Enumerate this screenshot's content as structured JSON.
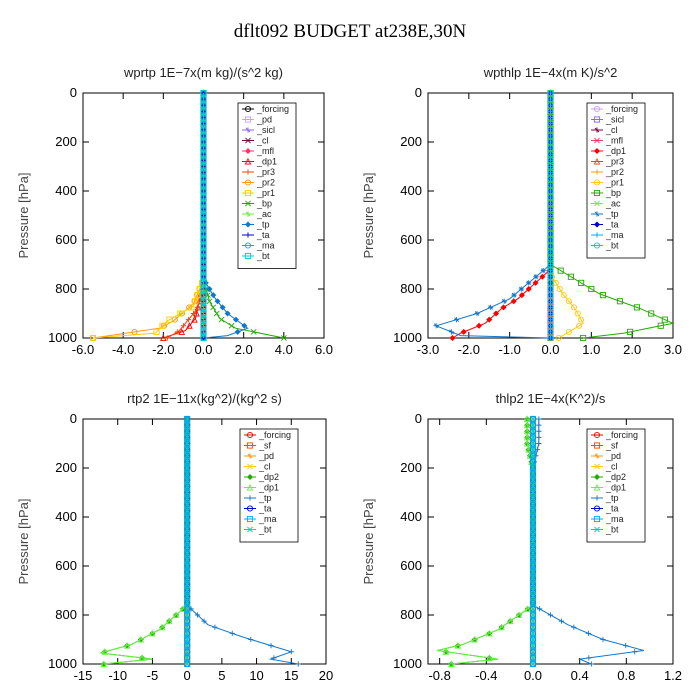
{
  "title": "dflt092  BUDGET at238E,30N",
  "chart_data": [
    {
      "type": "line",
      "title": "wprtp   1E−7x(m kg)/(s^2 kg)",
      "ylabel": "Pressure  [hPa]",
      "xlim": [
        -6,
        6
      ],
      "ylim": [
        1000,
        0
      ],
      "xticks": [
        "-6.0",
        "-4.0",
        "-2.0",
        "0.0",
        "2.0",
        "4.0",
        "6.0"
      ],
      "xtick_values": [
        -6,
        -4,
        -2,
        0,
        2,
        4,
        6
      ],
      "yticks": [
        "0",
        "200",
        "400",
        "600",
        "800",
        "1000"
      ],
      "ytick_values": [
        0,
        200,
        400,
        600,
        800,
        1000
      ],
      "legend_position": "top-right",
      "series": [
        {
          "name": "_forcing",
          "color": "#000000",
          "points": [
            [
              0,
              0
            ],
            [
              0,
              750
            ],
            [
              0,
              1000
            ]
          ]
        },
        {
          "name": "_pd",
          "color": "#c8a0ff",
          "points": [
            [
              0,
              0
            ],
            [
              0,
              1000
            ]
          ]
        },
        {
          "name": "_sicl",
          "color": "#8866ff",
          "points": [
            [
              0,
              0
            ],
            [
              0,
              1000
            ]
          ]
        },
        {
          "name": "_cl",
          "color": "#800040",
          "points": [
            [
              0,
              0
            ],
            [
              0,
              1000
            ]
          ]
        },
        {
          "name": "_mfl",
          "color": "#ff3366",
          "points": [
            [
              0,
              0
            ],
            [
              0,
              1000
            ]
          ]
        },
        {
          "name": "_dp1",
          "color": "#ff0000",
          "points": [
            [
              0,
              0
            ],
            [
              0,
              760
            ],
            [
              -0.2,
              850
            ],
            [
              -0.4,
              920
            ],
            [
              -0.9,
              970
            ],
            [
              -2,
              1000
            ]
          ]
        },
        {
          "name": "_pr3",
          "color": "#ff4400",
          "points": [
            [
              0,
              0
            ],
            [
              0,
              760
            ],
            [
              -0.3,
              880
            ],
            [
              -1.2,
              970
            ],
            [
              -1.8,
              1000
            ]
          ]
        },
        {
          "name": "_pr2",
          "color": "#ff9900",
          "points": [
            [
              0,
              0
            ],
            [
              0,
              760
            ],
            [
              -0.5,
              860
            ],
            [
              -1.5,
              930
            ],
            [
              -2.2,
              960
            ],
            [
              -5.5,
              1000
            ]
          ]
        },
        {
          "name": "_pr1",
          "color": "#ffcc00",
          "points": [
            [
              0,
              0
            ],
            [
              0,
              760
            ],
            [
              -0.5,
              870
            ],
            [
              -1.8,
              930
            ],
            [
              -2.4,
              980
            ],
            [
              -5.5,
              1000
            ]
          ]
        },
        {
          "name": "_bp",
          "color": "#22aa00",
          "points": [
            [
              0,
              0
            ],
            [
              0,
              760
            ],
            [
              0.3,
              850
            ],
            [
              0.8,
              920
            ],
            [
              1.6,
              960
            ],
            [
              4,
              1000
            ]
          ]
        },
        {
          "name": "_ac",
          "color": "#66ee44",
          "points": [
            [
              0,
              0
            ],
            [
              0,
              1000
            ]
          ]
        },
        {
          "name": "_tp",
          "color": "#1177cc",
          "points": [
            [
              0,
              0
            ],
            [
              0,
              760
            ],
            [
              0.6,
              840
            ],
            [
              1.2,
              900
            ],
            [
              2.2,
              960
            ],
            [
              1.2,
              990
            ],
            [
              0,
              1000
            ]
          ]
        },
        {
          "name": "_ta",
          "color": "#0000cc",
          "points": [
            [
              0,
              0
            ],
            [
              0,
              1000
            ]
          ]
        },
        {
          "name": "_ma",
          "color": "#00aaff",
          "points": [
            [
              0,
              0
            ],
            [
              0,
              1000
            ]
          ]
        },
        {
          "name": "_bt",
          "color": "#00cccc",
          "points": [
            [
              0,
              0
            ],
            [
              0,
              1000
            ]
          ]
        }
      ]
    },
    {
      "type": "line",
      "title": "wpthlp   1E−4x(m K)/s^2",
      "ylabel": "Pressure  [hPa]",
      "xlim": [
        -3,
        3
      ],
      "ylim": [
        1000,
        0
      ],
      "xticks": [
        "-3.0",
        "-2.0",
        "-1.0",
        "0.0",
        "1.0",
        "2.0",
        "3.0"
      ],
      "xtick_values": [
        -3,
        -2,
        -1,
        0,
        1,
        2,
        3
      ],
      "yticks": [
        "0",
        "200",
        "400",
        "600",
        "800",
        "1000"
      ],
      "ytick_values": [
        0,
        200,
        400,
        600,
        800,
        1000
      ],
      "legend_position": "top-right",
      "series": [
        {
          "name": "_forcing",
          "color": "#c8a0ff",
          "points": [
            [
              0,
              0
            ],
            [
              0,
              1000
            ]
          ]
        },
        {
          "name": "_sicl",
          "color": "#8866ff",
          "points": [
            [
              0,
              0
            ],
            [
              0,
              1000
            ]
          ]
        },
        {
          "name": "_cl",
          "color": "#800040",
          "points": [
            [
              0,
              0
            ],
            [
              0,
              1000
            ]
          ]
        },
        {
          "name": "_mfl",
          "color": "#ff3366",
          "points": [
            [
              0,
              0
            ],
            [
              0,
              1000
            ]
          ]
        },
        {
          "name": "_dp1",
          "color": "#ff0000",
          "points": [
            [
              0,
              0
            ],
            [
              0,
              720
            ],
            [
              -0.8,
              840
            ],
            [
              -1.2,
              880
            ],
            [
              -1.6,
              940
            ],
            [
              -2.2,
              980
            ],
            [
              -2.4,
              1000
            ]
          ]
        },
        {
          "name": "_pr3",
          "color": "#ff4400",
          "points": [
            [
              0,
              0
            ],
            [
              0,
              1000
            ]
          ]
        },
        {
          "name": "_pr2",
          "color": "#ff9900",
          "points": [
            [
              0,
              0
            ],
            [
              0,
              1000
            ]
          ]
        },
        {
          "name": "_pr1",
          "color": "#ffcc00",
          "points": [
            [
              0,
              0
            ],
            [
              0,
              740
            ],
            [
              0.3,
              820
            ],
            [
              0.6,
              880
            ],
            [
              0.8,
              940
            ],
            [
              0.2,
              1000
            ]
          ]
        },
        {
          "name": "_bp",
          "color": "#22aa00",
          "points": [
            [
              0,
              0
            ],
            [
              0,
              700
            ],
            [
              1.2,
              820
            ],
            [
              2.2,
              880
            ],
            [
              3.0,
              940
            ],
            [
              1.8,
              980
            ],
            [
              0.8,
              1000
            ]
          ]
        },
        {
          "name": "_ac",
          "color": "#66ee44",
          "points": [
            [
              0,
              0
            ],
            [
              0,
              1000
            ]
          ]
        },
        {
          "name": "_tp",
          "color": "#1177cc",
          "points": [
            [
              0,
              0
            ],
            [
              0,
              700
            ],
            [
              -1.0,
              840
            ],
            [
              -1.8,
              900
            ],
            [
              -2.8,
              950
            ],
            [
              -2.2,
              990
            ],
            [
              0,
              1000
            ]
          ]
        },
        {
          "name": "_ta",
          "color": "#0000cc",
          "points": [
            [
              0,
              0
            ],
            [
              0,
              1000
            ]
          ]
        },
        {
          "name": "_ma",
          "color": "#00aaff",
          "points": [
            [
              0,
              0
            ],
            [
              0,
              1000
            ]
          ]
        },
        {
          "name": "_bt",
          "color": "#00cccc",
          "points": [
            [
              0,
              0
            ],
            [
              0,
              1000
            ]
          ]
        }
      ]
    },
    {
      "type": "line",
      "title": "rtp2   1E−11x(kg^2)/(kg^2 s)",
      "ylabel": "Pressure  [hPa]",
      "xlim": [
        -15,
        20
      ],
      "ylim": [
        1000,
        0
      ],
      "xticks": [
        "-15",
        "-10",
        "-5",
        "0",
        "5",
        "10",
        "15",
        "20"
      ],
      "xtick_values": [
        -15,
        -10,
        -5,
        0,
        5,
        10,
        15,
        20
      ],
      "yticks": [
        "0",
        "200",
        "400",
        "600",
        "800",
        "1000"
      ],
      "ytick_values": [
        0,
        200,
        400,
        600,
        800,
        1000
      ],
      "legend_position": "top-right",
      "series": [
        {
          "name": "_forcing",
          "color": "#ff0000",
          "points": [
            [
              0,
              0
            ],
            [
              0,
              1000
            ]
          ]
        },
        {
          "name": "_sf",
          "color": "#ff4400",
          "points": [
            [
              0,
              0
            ],
            [
              0,
              1000
            ]
          ]
        },
        {
          "name": "_pd",
          "color": "#ff9900",
          "points": [
            [
              0,
              0
            ],
            [
              0,
              1000
            ]
          ]
        },
        {
          "name": "_cl",
          "color": "#ffcc00",
          "points": [
            [
              0,
              0
            ],
            [
              0,
              1000
            ]
          ]
        },
        {
          "name": "_dp2",
          "color": "#22aa00",
          "points": [
            [
              0,
              0
            ],
            [
              0,
              760
            ],
            [
              -4,
              860
            ],
            [
              -8,
              920
            ],
            [
              -12.5,
              955
            ],
            [
              -5,
              980
            ],
            [
              -12,
              1000
            ]
          ]
        },
        {
          "name": "_dp1",
          "color": "#66ee44",
          "points": [
            [
              0,
              0
            ],
            [
              0,
              760
            ],
            [
              -4,
              860
            ],
            [
              -8,
              920
            ],
            [
              -12.5,
              955
            ],
            [
              -5,
              980
            ],
            [
              -12,
              1000
            ]
          ]
        },
        {
          "name": "_tp",
          "color": "#1177cc",
          "points": [
            [
              0,
              0
            ],
            [
              0,
              760
            ],
            [
              3,
              840
            ],
            [
              8,
              890
            ],
            [
              15,
              950
            ],
            [
              12,
              980
            ],
            [
              16,
              1000
            ]
          ]
        },
        {
          "name": "_ta",
          "color": "#0000cc",
          "points": [
            [
              0,
              0
            ],
            [
              0,
              1000
            ]
          ]
        },
        {
          "name": "_ma",
          "color": "#00aaff",
          "points": [
            [
              0,
              0
            ],
            [
              0,
              1000
            ]
          ]
        },
        {
          "name": "_bt",
          "color": "#00cccc",
          "points": [
            [
              0,
              0
            ],
            [
              0,
              1000
            ]
          ]
        }
      ]
    },
    {
      "type": "line",
      "title": "thlp2   1E−4x(K^2)/s",
      "ylabel": "Pressure  [hPa]",
      "xlim": [
        -0.9,
        1.2
      ],
      "ylim": [
        1000,
        0
      ],
      "xticks": [
        "-0.8",
        "-0.4",
        "0.0",
        "0.4",
        "0.8",
        "1.2"
      ],
      "xtick_values": [
        -0.8,
        -0.4,
        0,
        0.4,
        0.8,
        1.2
      ],
      "yticks": [
        "0",
        "200",
        "400",
        "600",
        "800",
        "1000"
      ],
      "ytick_values": [
        0,
        200,
        400,
        600,
        800,
        1000
      ],
      "legend_position": "top-right",
      "series": [
        {
          "name": "_forcing",
          "color": "#ff0000",
          "points": [
            [
              0,
              0
            ],
            [
              0,
              1000
            ]
          ]
        },
        {
          "name": "_sf",
          "color": "#ff4400",
          "points": [
            [
              0,
              0
            ],
            [
              0,
              1000
            ]
          ]
        },
        {
          "name": "_pd",
          "color": "#ff9900",
          "points": [
            [
              0,
              0
            ],
            [
              0,
              1000
            ]
          ]
        },
        {
          "name": "_cl",
          "color": "#ffcc00",
          "points": [
            [
              0,
              0
            ],
            [
              0,
              1000
            ]
          ]
        },
        {
          "name": "_dp2",
          "color": "#22aa00",
          "points": [
            [
              -0.05,
              0
            ],
            [
              -0.05,
              100
            ],
            [
              0,
              200
            ],
            [
              0,
              760
            ],
            [
              -0.3,
              860
            ],
            [
              -0.6,
              920
            ],
            [
              -0.82,
              945
            ],
            [
              -0.3,
              980
            ],
            [
              -0.7,
              1000
            ]
          ]
        },
        {
          "name": "_dp1",
          "color": "#66ee44",
          "points": [
            [
              -0.05,
              0
            ],
            [
              -0.05,
              100
            ],
            [
              0,
              200
            ],
            [
              0,
              760
            ],
            [
              -0.3,
              860
            ],
            [
              -0.6,
              920
            ],
            [
              -0.82,
              945
            ],
            [
              -0.3,
              980
            ],
            [
              -0.7,
              1000
            ]
          ]
        },
        {
          "name": "_tp",
          "color": "#1177cc",
          "points": [
            [
              0.05,
              0
            ],
            [
              0.05,
              100
            ],
            [
              0,
              200
            ],
            [
              0,
              760
            ],
            [
              0.3,
              840
            ],
            [
              0.6,
              900
            ],
            [
              0.95,
              945
            ],
            [
              0.4,
              980
            ],
            [
              0.5,
              1000
            ]
          ]
        },
        {
          "name": "_ta",
          "color": "#0000cc",
          "points": [
            [
              0,
              0
            ],
            [
              0,
              1000
            ]
          ]
        },
        {
          "name": "_ma",
          "color": "#00aaff",
          "points": [
            [
              0,
              0
            ],
            [
              0,
              1000
            ]
          ]
        },
        {
          "name": "_bt",
          "color": "#00cccc",
          "points": [
            [
              0,
              0
            ],
            [
              0,
              1000
            ]
          ]
        }
      ]
    }
  ]
}
